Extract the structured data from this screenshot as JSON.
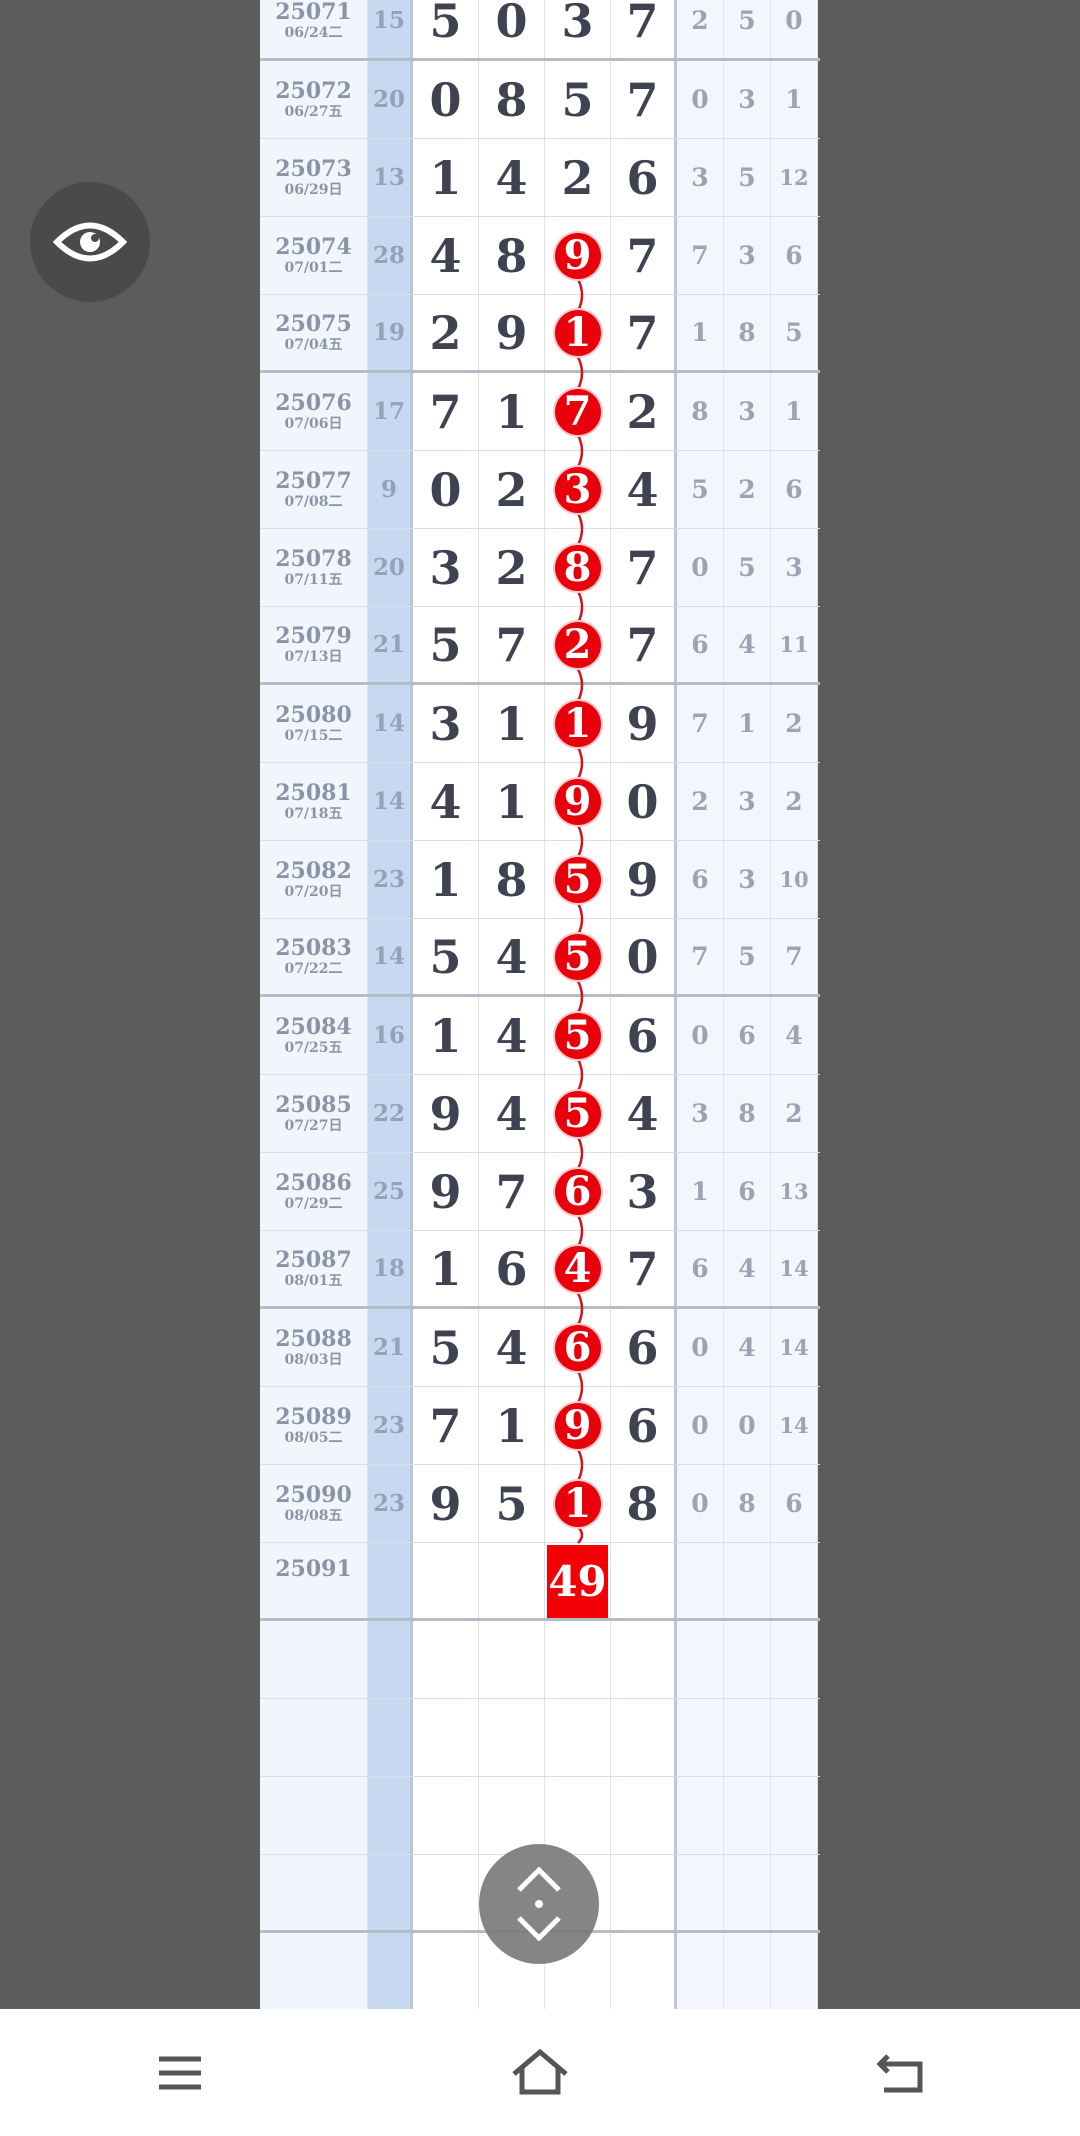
{
  "rows": [
    {
      "id": "25071",
      "date": "06/24二",
      "sum": "15",
      "d": [
        "5",
        "0",
        "3",
        "7"
      ],
      "s": [
        "2",
        "5",
        "0"
      ]
    },
    {
      "id": "25072",
      "date": "06/27五",
      "sum": "20",
      "d": [
        "0",
        "8",
        "5",
        "7"
      ],
      "s": [
        "0",
        "3",
        "1"
      ]
    },
    {
      "id": "25073",
      "date": "06/29日",
      "sum": "13",
      "d": [
        "1",
        "4",
        "2",
        "6"
      ],
      "s": [
        "3",
        "5",
        "12"
      ]
    },
    {
      "id": "25074",
      "date": "07/01二",
      "sum": "28",
      "d": [
        "4",
        "8",
        "9",
        "7"
      ],
      "s": [
        "7",
        "3",
        "6"
      ]
    },
    {
      "id": "25075",
      "date": "07/04五",
      "sum": "19",
      "d": [
        "2",
        "9",
        "1",
        "7"
      ],
      "s": [
        "1",
        "8",
        "5"
      ]
    },
    {
      "id": "25076",
      "date": "07/06日",
      "sum": "17",
      "d": [
        "7",
        "1",
        "7",
        "2"
      ],
      "s": [
        "8",
        "3",
        "1"
      ]
    },
    {
      "id": "25077",
      "date": "07/08二",
      "sum": "9",
      "d": [
        "0",
        "2",
        "3",
        "4"
      ],
      "s": [
        "5",
        "2",
        "6"
      ]
    },
    {
      "id": "25078",
      "date": "07/11五",
      "sum": "20",
      "d": [
        "3",
        "2",
        "8",
        "7"
      ],
      "s": [
        "0",
        "5",
        "3"
      ]
    },
    {
      "id": "25079",
      "date": "07/13日",
      "sum": "21",
      "d": [
        "5",
        "7",
        "2",
        "7"
      ],
      "s": [
        "6",
        "4",
        "11"
      ]
    },
    {
      "id": "25080",
      "date": "07/15二",
      "sum": "14",
      "d": [
        "3",
        "1",
        "1",
        "9"
      ],
      "s": [
        "7",
        "1",
        "2"
      ]
    },
    {
      "id": "25081",
      "date": "07/18五",
      "sum": "14",
      "d": [
        "4",
        "1",
        "9",
        "0"
      ],
      "s": [
        "2",
        "3",
        "2"
      ]
    },
    {
      "id": "25082",
      "date": "07/20日",
      "sum": "23",
      "d": [
        "1",
        "8",
        "5",
        "9"
      ],
      "s": [
        "6",
        "3",
        "10"
      ]
    },
    {
      "id": "25083",
      "date": "07/22二",
      "sum": "14",
      "d": [
        "5",
        "4",
        "5",
        "0"
      ],
      "s": [
        "7",
        "5",
        "7"
      ]
    },
    {
      "id": "25084",
      "date": "07/25五",
      "sum": "16",
      "d": [
        "1",
        "4",
        "5",
        "6"
      ],
      "s": [
        "0",
        "6",
        "4"
      ]
    },
    {
      "id": "25085",
      "date": "07/27日",
      "sum": "22",
      "d": [
        "9",
        "4",
        "5",
        "4"
      ],
      "s": [
        "3",
        "8",
        "2"
      ]
    },
    {
      "id": "25086",
      "date": "07/29二",
      "sum": "25",
      "d": [
        "9",
        "7",
        "6",
        "3"
      ],
      "s": [
        "1",
        "6",
        "13"
      ]
    },
    {
      "id": "25087",
      "date": "08/01五",
      "sum": "18",
      "d": [
        "1",
        "6",
        "4",
        "7"
      ],
      "s": [
        "6",
        "4",
        "14"
      ]
    },
    {
      "id": "25088",
      "date": "08/03日",
      "sum": "21",
      "d": [
        "5",
        "4",
        "6",
        "6"
      ],
      "s": [
        "0",
        "4",
        "14"
      ]
    },
    {
      "id": "25089",
      "date": "08/05二",
      "sum": "23",
      "d": [
        "7",
        "1",
        "9",
        "6"
      ],
      "s": [
        "0",
        "0",
        "14"
      ]
    },
    {
      "id": "25090",
      "date": "08/08五",
      "sum": "23",
      "d": [
        "9",
        "5",
        "1",
        "8"
      ],
      "s": [
        "0",
        "8",
        "6"
      ]
    }
  ],
  "highlight_column": 3,
  "highlight_from": "25074",
  "next": {
    "id": "25091",
    "prediction": "49"
  },
  "empty_rows": 5,
  "colors": {
    "ball": "#e8000b",
    "sum_column": "#c6d9f1"
  },
  "icons": {
    "eye": "eye-icon",
    "scroll": "scroll-up-down-icon",
    "nav": [
      "menu-icon",
      "home-icon",
      "back-icon"
    ]
  }
}
